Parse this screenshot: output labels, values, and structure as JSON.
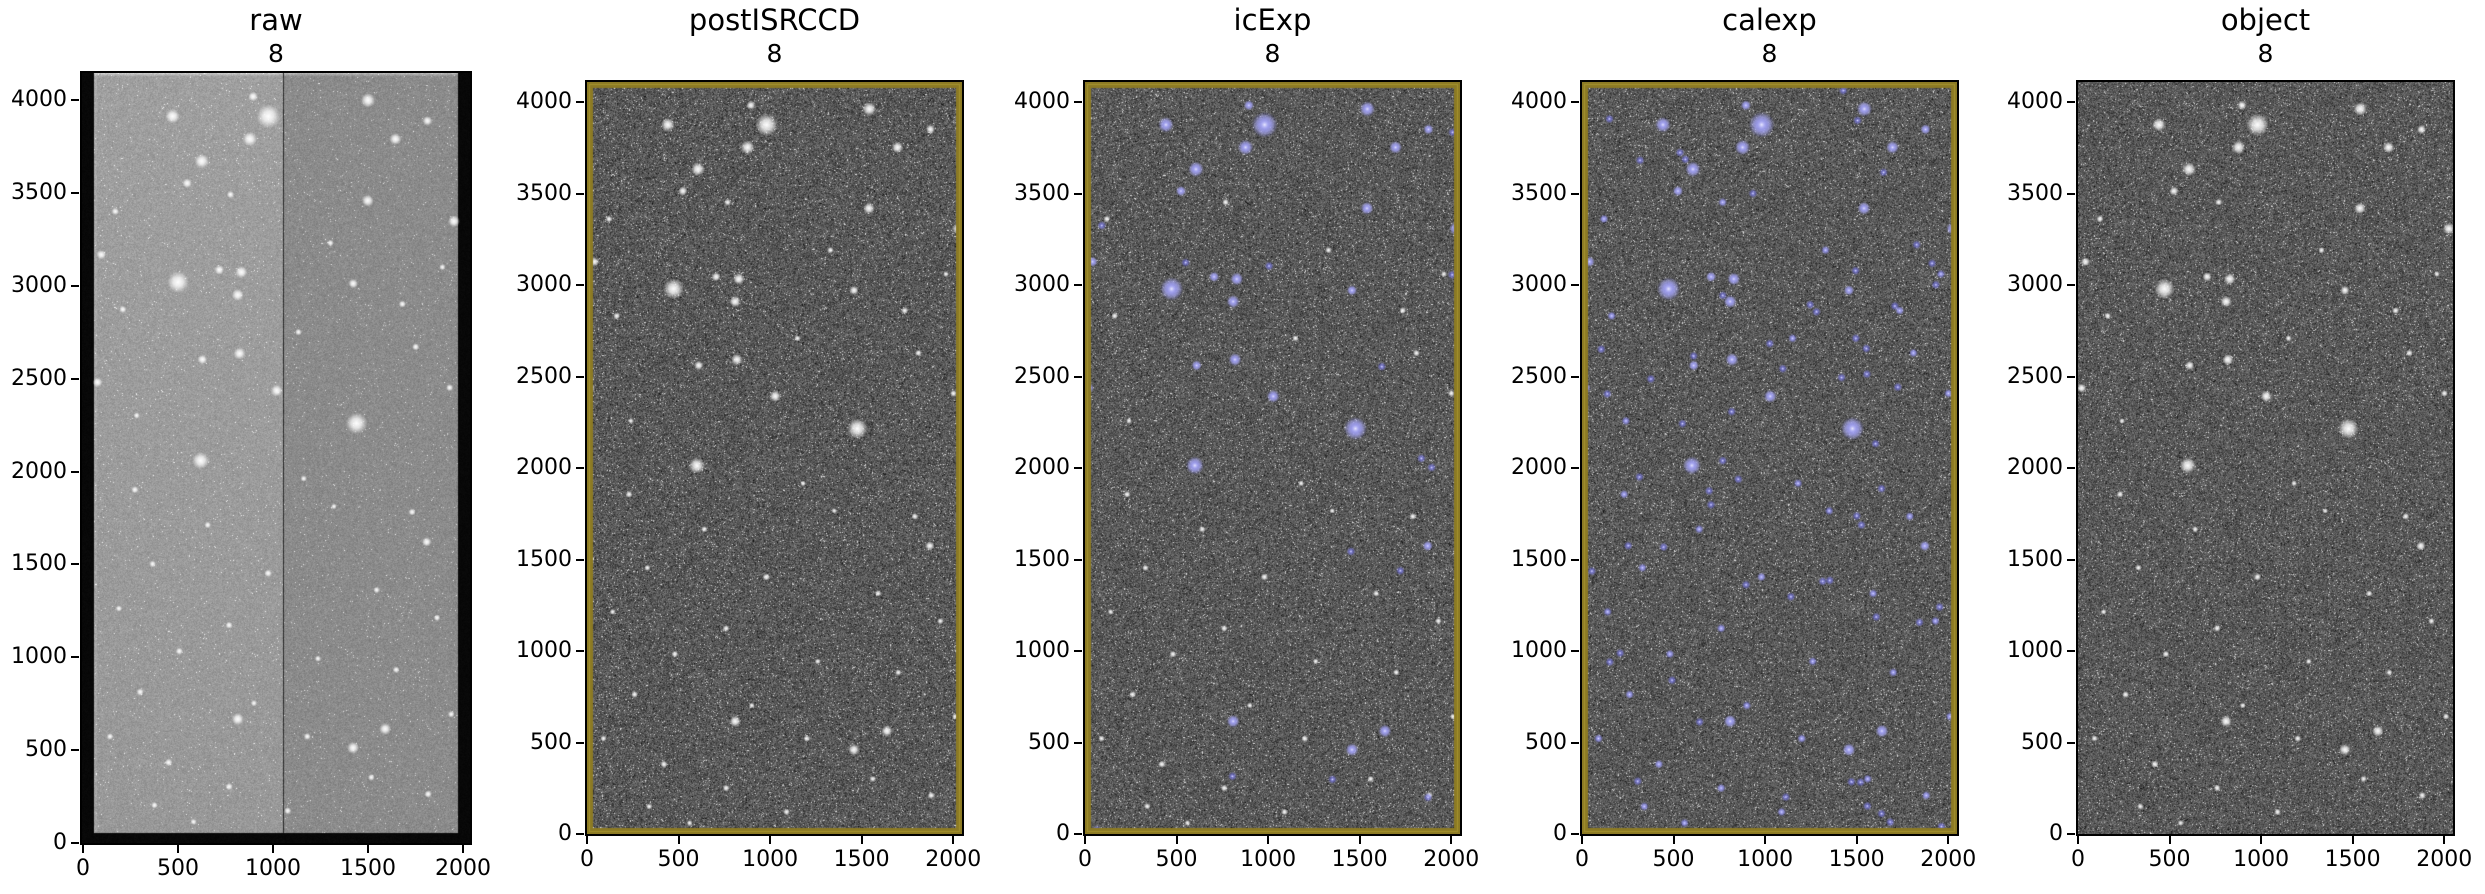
{
  "figure": {
    "background": "#ffffff",
    "colors": {
      "axis_spine": "#000000",
      "tick_label": "#000000",
      "frame_olive": "#8c7a24",
      "frame_olive_light": "#a5922e",
      "detection_halo": "#7878e8",
      "detection_core": "#e8e8ff",
      "raw_bg_left": "#989898",
      "raw_bg_right": "#8b8b8b",
      "isr_bg": "#565656",
      "overscan_bar": "#060606",
      "star": "#ffffff"
    }
  },
  "chart_data": {
    "type": "heatmap",
    "description": "Five CCD exposure cutouts of the same star field at successive LSST pipeline stages; grayscale noise images with stars, blue overlays mark detected sources in icExp and calexp.",
    "panels": [
      {
        "id": "raw",
        "title": "raw",
        "subtitle": "8",
        "frame": "none",
        "detections": "none",
        "extra_detections": 0,
        "xticks": [
          0,
          500,
          1000,
          1500,
          2000
        ],
        "xtick_labels": [
          "0",
          "500",
          "1000",
          "1500",
          "2000"
        ],
        "yticks": [
          0,
          500,
          1000,
          1500,
          2000,
          2500,
          3000,
          3500,
          4000
        ],
        "ytick_labels": [
          "0",
          "500",
          "1000",
          "1500",
          "2000",
          "2500",
          "3000",
          "3500",
          "4000"
        ],
        "xlim": [
          0,
          2040
        ],
        "ylim": [
          0,
          4140
        ],
        "style": {
          "background": "light-two-amp",
          "overscan_bars": true,
          "amp_split": true
        }
      },
      {
        "id": "postISRCCD",
        "title": "postISRCCD",
        "subtitle": "8",
        "frame": "olive",
        "detections": "none",
        "extra_detections": 0,
        "xticks": [
          0,
          500,
          1000,
          1500,
          2000
        ],
        "xtick_labels": [
          "0",
          "500",
          "1000",
          "1500",
          "2000"
        ],
        "yticks": [
          0,
          500,
          1000,
          1500,
          2000,
          2500,
          3000,
          3500,
          4000
        ],
        "ytick_labels": [
          "0",
          "500",
          "1000",
          "1500",
          "2000",
          "2500",
          "3000",
          "3500",
          "4000"
        ],
        "xlim": [
          0,
          2048
        ],
        "ylim": [
          0,
          4110
        ],
        "style": {
          "background": "dark-grain",
          "overscan_bars": false,
          "amp_split": false
        }
      },
      {
        "id": "icExp",
        "title": "icExp",
        "subtitle": "8",
        "frame": "olive",
        "detections": "bright-stars",
        "extra_detections": 14,
        "xticks": [
          0,
          500,
          1000,
          1500,
          2000
        ],
        "xtick_labels": [
          "0",
          "500",
          "1000",
          "1500",
          "2000"
        ],
        "yticks": [
          0,
          500,
          1000,
          1500,
          2000,
          2500,
          3000,
          3500,
          4000
        ],
        "ytick_labels": [
          "0",
          "500",
          "1000",
          "1500",
          "2000",
          "2500",
          "3000",
          "3500",
          "4000"
        ],
        "xlim": [
          0,
          2048
        ],
        "ylim": [
          0,
          4110
        ],
        "style": {
          "background": "dark-grain",
          "overscan_bars": false,
          "amp_split": false
        }
      },
      {
        "id": "calexp",
        "title": "calexp",
        "subtitle": "8",
        "frame": "olive",
        "detections": "all-stars",
        "extra_detections": 62,
        "xticks": [
          0,
          500,
          1000,
          1500,
          2000
        ],
        "xtick_labels": [
          "0",
          "500",
          "1000",
          "1500",
          "2000"
        ],
        "yticks": [
          0,
          500,
          1000,
          1500,
          2000,
          2500,
          3000,
          3500,
          4000
        ],
        "ytick_labels": [
          "0",
          "500",
          "1000",
          "1500",
          "2000",
          "2500",
          "3000",
          "3500",
          "4000"
        ],
        "xlim": [
          0,
          2048
        ],
        "ylim": [
          0,
          4110
        ],
        "style": {
          "background": "dark-grain",
          "overscan_bars": false,
          "amp_split": false
        }
      },
      {
        "id": "object",
        "title": "object",
        "subtitle": "8",
        "frame": "none",
        "detections": "none",
        "extra_detections": 0,
        "xticks": [
          0,
          500,
          1000,
          1500,
          2000
        ],
        "xtick_labels": [
          "0",
          "500",
          "1000",
          "1500",
          "2000"
        ],
        "yticks": [
          0,
          500,
          1000,
          1500,
          2000,
          2500,
          3000,
          3500,
          4000
        ],
        "ytick_labels": [
          "0",
          "500",
          "1000",
          "1500",
          "2000",
          "2500",
          "3000",
          "3500",
          "4000"
        ],
        "xlim": [
          0,
          2048
        ],
        "ylim": [
          0,
          4110
        ],
        "style": {
          "background": "dark-grain",
          "overscan_bars": false,
          "amp_split": false
        }
      }
    ],
    "stars": [
      [
        981,
        3863,
        5
      ],
      [
        895,
        3969,
        2
      ],
      [
        442,
        3863,
        3
      ],
      [
        1542,
        3949,
        3
      ],
      [
        1876,
        3838,
        2
      ],
      [
        877,
        3740,
        3
      ],
      [
        1696,
        3740,
        2.5
      ],
      [
        606,
        3621,
        3
      ],
      [
        524,
        3502,
        2
      ],
      [
        1540,
        3408,
        2.5
      ],
      [
        2025,
        3297,
        2.5
      ],
      [
        768,
        3441,
        1.5
      ],
      [
        41,
        3117,
        2
      ],
      [
        473,
        2969,
        4.5
      ],
      [
        829,
        3023,
        2.5
      ],
      [
        705,
        3035,
        2
      ],
      [
        809,
        2900,
        2.5
      ],
      [
        1458,
        2961,
        2
      ],
      [
        162,
        2822,
        1.5
      ],
      [
        1735,
        2851,
        1.5
      ],
      [
        819,
        2584,
        2.5
      ],
      [
        610,
        2552,
        2
      ],
      [
        20,
        2429,
        2
      ],
      [
        1028,
        2384,
        2.5
      ],
      [
        1477,
        2208,
        4.5
      ],
      [
        600,
        2007,
        3.5
      ],
      [
        2001,
        2400,
        1.5
      ],
      [
        1872,
        1569,
        2
      ],
      [
        809,
        614,
        2.5
      ],
      [
        1638,
        561,
        2.5
      ],
      [
        1458,
        459,
        2.5
      ],
      [
        230,
        1850,
        1.5
      ],
      [
        1180,
        1910,
        1.3
      ],
      [
        640,
        1660,
        1.4
      ],
      [
        1790,
        1730,
        1.5
      ],
      [
        330,
        1450,
        1.4
      ],
      [
        980,
        1400,
        1.6
      ],
      [
        1590,
        1310,
        1.4
      ],
      [
        140,
        1210,
        1.3
      ],
      [
        760,
        1120,
        1.5
      ],
      [
        1930,
        1160,
        1.4
      ],
      [
        480,
        980,
        1.5
      ],
      [
        1260,
        940,
        1.3
      ],
      [
        1700,
        880,
        1.4
      ],
      [
        260,
        760,
        1.5
      ],
      [
        900,
        700,
        1.3
      ],
      [
        2010,
        640,
        1.4
      ],
      [
        1200,
        520,
        1.5
      ],
      [
        420,
        380,
        1.6
      ],
      [
        1560,
        300,
        1.4
      ],
      [
        760,
        250,
        1.5
      ],
      [
        1880,
        210,
        1.6
      ],
      [
        340,
        150,
        1.4
      ],
      [
        1090,
        120,
        1.5
      ],
      [
        560,
        60,
        1.3
      ],
      [
        1350,
        1760,
        1.2
      ],
      [
        90,
        520,
        1.4
      ],
      [
        1810,
        2620,
        1.5
      ],
      [
        120,
        3350,
        1.5
      ],
      [
        1330,
        3180,
        1.4
      ],
      [
        1960,
        3050,
        1.3
      ],
      [
        240,
        2250,
        1.3
      ],
      [
        1150,
        2700,
        1.4
      ]
    ]
  }
}
